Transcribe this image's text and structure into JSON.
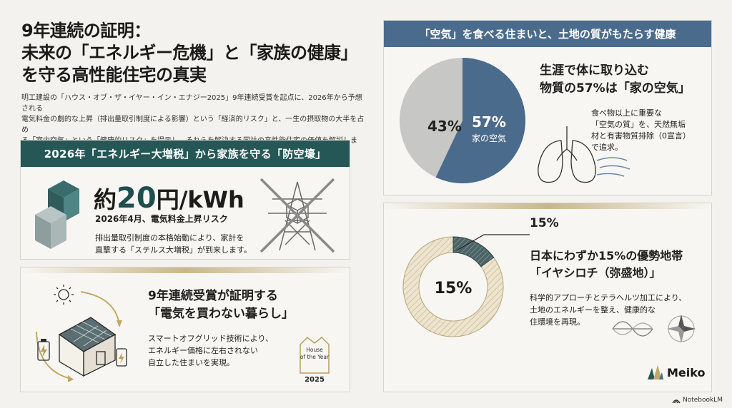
{
  "title": {
    "line1": "9年連続の証明：",
    "line2": "未来の「エネルギー危機」と「家族の健康」",
    "line3": "を守る高性能住宅の真実"
  },
  "intro": {
    "line1": "明工建設の「ハウス・オブ・ザ・イヤー・イン・エナジー2025」9年連続受賞を起点に、2026年から予想される",
    "line2": "電気料金の劇的な上昇（排出量取引制度による影響）という「経済的リスク」と、一生の摂取物の大半を占め",
    "line3": "る「室内空気」という「健康的リスク」を提示し、それらを解決する同社の高性能住宅の価値を解説します。"
  },
  "card1": {
    "header": "2026年「エネルギー大増税」から家族を守る「防空壕」",
    "big_prefix": "約",
    "big_number": "20",
    "big_suffix": "円/kWh",
    "subtitle": "2026年4月、電気料金上昇リスク",
    "desc1": "排出量取引制度の本格始動により、家計を",
    "desc2": "直撃する「ステルス大増税」が到来します。"
  },
  "card2": {
    "headline1": "9年連続受賞が証明する",
    "headline2": "「電気を買わない暮らし」",
    "desc1": "スマートオフグリッド技術により、",
    "desc2": "エネルギー価格に左右されない",
    "desc3": "自立した住まいを実現。",
    "badge_line1": "House",
    "badge_line2": "of the Year",
    "badge_year": "2025"
  },
  "card3": {
    "header": "「空気」を食べる住まいと、土地の質がもたらす健康",
    "headline1": "生涯で体に取り込む",
    "headline2": "物質の57%は「家の空気」",
    "desc1": "食べ物以上に重要な",
    "desc2": "「空気の質」を、天然無垢",
    "desc3": "材と有害物質排除（0宣言）",
    "desc4": "で追求。",
    "pie_small_label": "43%",
    "pie_big_label": "57%",
    "pie_big_caption": "家の空気",
    "pie_fraction": 0.57,
    "pie_colors": {
      "main": "#4b6b8c",
      "rest": "#c7c7c5"
    }
  },
  "card4": {
    "pct_small": "15%",
    "headline1": "日本にわずか15%の優勢地帯",
    "headline2": "「イヤシロチ（弥盛地）」",
    "desc1": "科学的アプローチとテラヘルツ加工により、",
    "desc2": "土地のエネルギーを整え、健康的な",
    "desc3": "住環境を再現。",
    "donut_label": "15%",
    "donut_fraction": 0.15
  },
  "brand": {
    "name": "Meiko"
  },
  "footer": {
    "notebooklm": "NotebookLM"
  }
}
